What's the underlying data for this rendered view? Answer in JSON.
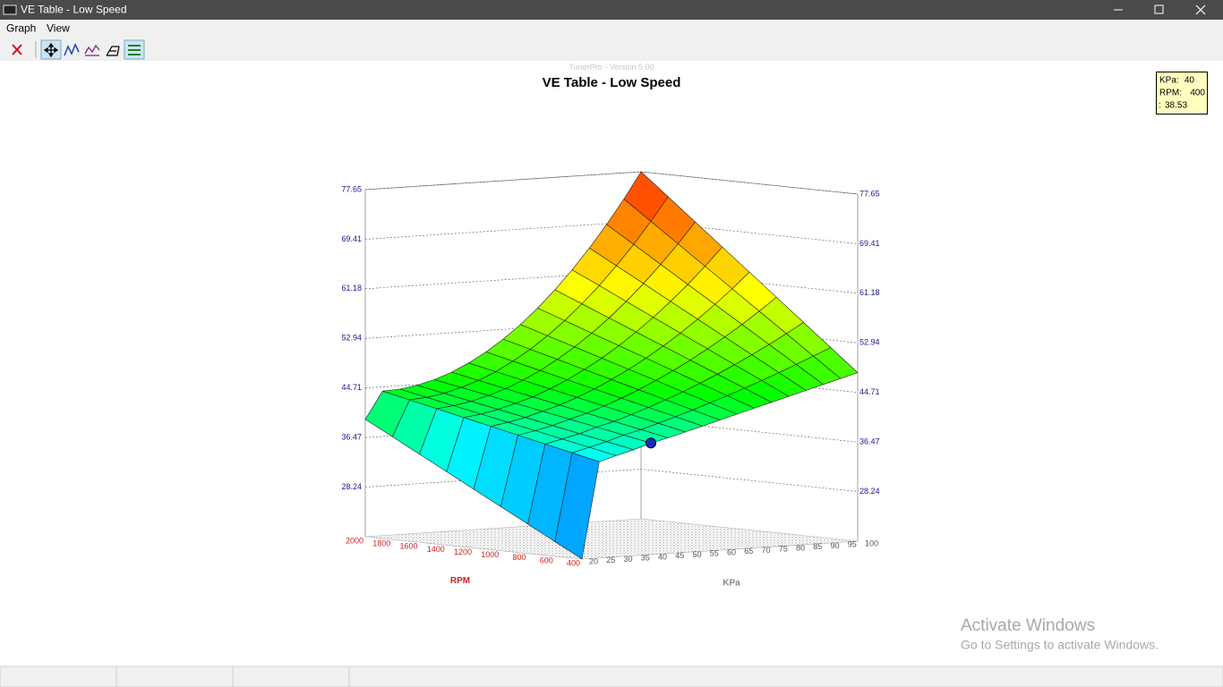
{
  "window": {
    "title": "VE Table - Low Speed"
  },
  "menu": [
    "Graph",
    "View"
  ],
  "watermark": "TunerPro - Version 5.00",
  "chart_data": {
    "type": "surface3d",
    "title": "VE Table - Low Speed",
    "x_label": "RPM",
    "y_label": "KPa",
    "rpm": [
      400,
      600,
      800,
      1000,
      1200,
      1400,
      1600,
      1800,
      2000
    ],
    "kpa": [
      20,
      25,
      30,
      35,
      40,
      45,
      50,
      55,
      60,
      65,
      70,
      75,
      80,
      85,
      90,
      95,
      100
    ],
    "values": [
      [
        20,
        36,
        36.8,
        37.6,
        38.53,
        39.2,
        40,
        40.8,
        41.6,
        42.4,
        43.2,
        44,
        44.8,
        45.6,
        46.4,
        47.2,
        48
      ],
      [
        22.44,
        37,
        37.72,
        38.48,
        39.38,
        40.1,
        40.97,
        41.87,
        42.82,
        43.8,
        44.81,
        45.87,
        46.96,
        48.09,
        49.26,
        50.46,
        51.71
      ],
      [
        24.88,
        38,
        38.64,
        39.35,
        40.24,
        41,
        41.94,
        42.95,
        44.03,
        45.19,
        46.43,
        47.74,
        49.13,
        50.59,
        52.12,
        53.73,
        55.41
      ],
      [
        27.31,
        39,
        39.56,
        40.23,
        41.09,
        41.9,
        42.9,
        44.02,
        45.25,
        46.59,
        48.04,
        49.61,
        51.29,
        53.08,
        54.98,
        56.99,
        59.12
      ],
      [
        29.75,
        40,
        40.48,
        41.1,
        41.94,
        42.8,
        43.87,
        45.09,
        46.47,
        47.99,
        49.66,
        51.48,
        53.45,
        55.57,
        57.84,
        60.26,
        62.83
      ],
      [
        32.19,
        41,
        41.39,
        41.98,
        42.79,
        43.69,
        44.84,
        46.16,
        47.68,
        49.38,
        51.27,
        53.35,
        55.61,
        58.06,
        60.69,
        63.52,
        66.53
      ],
      [
        34.63,
        42,
        42.31,
        42.85,
        43.65,
        44.59,
        45.81,
        47.24,
        48.9,
        50.78,
        52.88,
        55.22,
        57.78,
        60.56,
        63.55,
        66.78,
        70.24
      ],
      [
        37.06,
        43,
        43.23,
        43.73,
        44.5,
        45.49,
        46.77,
        48.31,
        50.11,
        52.17,
        54.5,
        57.09,
        59.94,
        63.05,
        66.41,
        70.05,
        73.95
      ],
      [
        39.5,
        44,
        44.15,
        44.6,
        45.35,
        46.39,
        47.74,
        49.38,
        51.33,
        53.57,
        56.11,
        58.96,
        62.1,
        65.54,
        69.27,
        73.31,
        77.65
      ]
    ],
    "zlim": [
      20,
      77.65
    ],
    "zticks": [
      28.24,
      36.47,
      44.71,
      52.94,
      61.18,
      69.41,
      77.65
    ],
    "selected": {
      "rpm_index": 0,
      "kpa_index": 4
    }
  },
  "tooltip": {
    "labels": [
      "KPa:",
      "RPM:",
      ":"
    ]
  },
  "activation": {
    "title": "Activate Windows",
    "text": "Go to Settings to activate Windows."
  }
}
